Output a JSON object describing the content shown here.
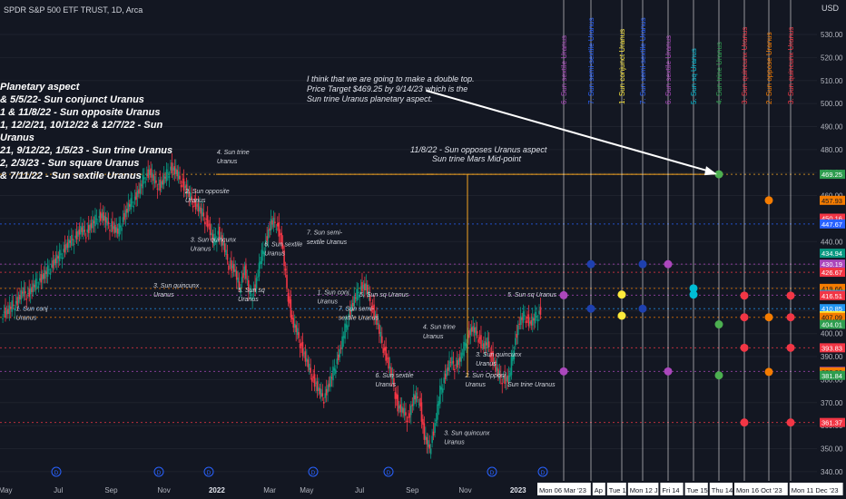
{
  "header": {
    "symbol": "SPDR S&P 500 ETF TRUST, 1D, Arca",
    "currency": "USD"
  },
  "chart_data": {
    "type": "candlestick",
    "ylim": [
      336,
      545
    ],
    "y_ticks": [
      340,
      350,
      360,
      370,
      380,
      390,
      400,
      410,
      420,
      430,
      440,
      450,
      460,
      470,
      480,
      490,
      500,
      510,
      520,
      530
    ],
    "x_ticks": [
      {
        "label": "May",
        "i": 0
      },
      {
        "label": "Jul",
        "i": 10
      },
      {
        "label": "Sep",
        "i": 20
      },
      {
        "label": "Nov",
        "i": 30
      },
      {
        "label": "2022",
        "i": 40
      },
      {
        "label": "Mar",
        "i": 50
      },
      {
        "label": "May",
        "i": 57
      },
      {
        "label": "Jul",
        "i": 67
      },
      {
        "label": "Sep",
        "i": 77
      },
      {
        "label": "Nov",
        "i": 87
      },
      {
        "label": "2023",
        "i": 97
      }
    ],
    "date_ticks": [
      "Mon 06 Mar '23",
      "Ap",
      "Tue 1",
      "Mon 12 J",
      "Fri 14",
      "Tue 15",
      "Thu 14",
      "Mon 16 Oct '23",
      "Mon 11 Dec '23"
    ],
    "weekly_closes": [
      409,
      412,
      414,
      418,
      417,
      420,
      423,
      425,
      428,
      431,
      434,
      437,
      440,
      442,
      445,
      444,
      447,
      450,
      451,
      448,
      446,
      444,
      450,
      455,
      458,
      462,
      468,
      470,
      466,
      464,
      468,
      472,
      470,
      466,
      462,
      458,
      455,
      452,
      448,
      440,
      444,
      438,
      430,
      428,
      420,
      428,
      416,
      420,
      432,
      440,
      448,
      448,
      440,
      420,
      405,
      400,
      392,
      386,
      380,
      375,
      372,
      378,
      385,
      392,
      402,
      410,
      416,
      420,
      420,
      412,
      405,
      396,
      388,
      380,
      368,
      366,
      363,
      372,
      372,
      355,
      350,
      360,
      375,
      382,
      388,
      386,
      390,
      398,
      402,
      400,
      394,
      396,
      388,
      382,
      380,
      380,
      395,
      405,
      408,
      404,
      407,
      410
    ],
    "price_labels": [
      {
        "value": 469.25,
        "text": "469.25",
        "color": "#2e9d4f"
      },
      {
        "value": 457.93,
        "text": "457.93",
        "color": "#f57c00"
      },
      {
        "value": 450.16,
        "text": "450.16",
        "color": "#f23645"
      },
      {
        "value": 447.67,
        "text": "447.67",
        "color": "#2962ff"
      },
      {
        "value": 434.94,
        "text": "434.94",
        "color": "#089981"
      },
      {
        "value": 430.19,
        "text": "430.19",
        "color": "#ab47bc"
      },
      {
        "value": 426.67,
        "text": "426.67",
        "color": "#f23645"
      },
      {
        "value": 419.66,
        "text": "419.66",
        "color": "#f57c00"
      },
      {
        "value": 416.97,
        "text": "416.97",
        "color": "#00bcd4"
      },
      {
        "value": 416.68,
        "text": "416.68",
        "color": "#ab47bc"
      },
      {
        "value": 416.51,
        "text": "416.51",
        "color": "#f23645"
      },
      {
        "value": 410.85,
        "text": "410.85",
        "color": "#2196f3"
      },
      {
        "value": 407.77,
        "text": "407.77",
        "color": "#ffeb3b"
      },
      {
        "value": 407.09,
        "text": "407.09",
        "color": "#f57c00"
      },
      {
        "value": 404.01,
        "text": "404.01",
        "color": "#2e9d4f"
      },
      {
        "value": 393.83,
        "text": "393.83",
        "color": "#f23645"
      },
      {
        "value": 383.59,
        "text": "383.59",
        "color": "#ab47bc"
      },
      {
        "value": 383.36,
        "text": "383.36",
        "color": "#f57c00"
      },
      {
        "value": 381.84,
        "text": "381.84",
        "color": "#2e9d4f"
      },
      {
        "value": 361.37,
        "text": "361.37",
        "color": "#f23645"
      }
    ],
    "horizontal_levels": [
      {
        "value": 469.25,
        "color": "#f5a623"
      },
      {
        "value": 447.67,
        "color": "#2962ff"
      },
      {
        "value": 430.19,
        "color": "#ab47bc"
      },
      {
        "value": 426.67,
        "color": "#f23645"
      },
      {
        "value": 419.66,
        "color": "#f57c00"
      },
      {
        "value": 416.68,
        "color": "#ab47bc"
      },
      {
        "value": 410.85,
        "color": "#2196f3"
      },
      {
        "value": 407.09,
        "color": "#f57c00"
      },
      {
        "value": 393.83,
        "color": "#f23645"
      },
      {
        "value": 383.59,
        "color": "#ab47bc"
      },
      {
        "value": 361.37,
        "color": "#f23645"
      }
    ],
    "future_aspects": [
      {
        "label": "6. Sun sextile Uranus",
        "color": "#ab47bc",
        "points": [
          {
            "value": 416.68,
            "color": "#ab47bc"
          },
          {
            "value": 383.59,
            "color": "#ab47bc"
          }
        ]
      },
      {
        "label": "7. Sun semi-sextile Uranus",
        "color": "#2962ff",
        "points": [
          {
            "value": 430.19,
            "color": "#1e40af"
          },
          {
            "value": 410.85,
            "color": "#1e40af"
          }
        ]
      },
      {
        "label": "1. Sun conjunct Uranus",
        "color": "#ffeb3b",
        "points": [
          {
            "value": 416.97,
            "color": "#ffeb3b"
          },
          {
            "value": 407.77,
            "color": "#ffeb3b"
          }
        ]
      },
      {
        "label": "7. Sun semi-sextile Uranus",
        "color": "#2962ff",
        "points": [
          {
            "value": 430.19,
            "color": "#1e40af"
          },
          {
            "value": 410.85,
            "color": "#1e40af"
          }
        ]
      },
      {
        "label": "6. Sun sextile Uranus",
        "color": "#ab47bc",
        "points": [
          {
            "value": 430.19,
            "color": "#ab47bc"
          },
          {
            "value": 383.59,
            "color": "#ab47bc"
          }
        ]
      },
      {
        "label": "5. Sun sq Uranus",
        "color": "#00bcd4",
        "points": [
          {
            "value": 419.66,
            "color": "#00bcd4"
          },
          {
            "value": 416.97,
            "color": "#00bcd4"
          }
        ]
      },
      {
        "label": "4. Sun trine Uranus",
        "color": "#2e9d4f",
        "points": [
          {
            "value": 469.25,
            "color": "#4caf50"
          },
          {
            "value": 404.01,
            "color": "#4caf50"
          },
          {
            "value": 381.84,
            "color": "#4caf50"
          }
        ]
      },
      {
        "label": "3. Sun quincunx Uranus",
        "color": "#f23645",
        "points": [
          {
            "value": 416.51,
            "color": "#f23645"
          },
          {
            "value": 407.09,
            "color": "#f23645"
          },
          {
            "value": 393.83,
            "color": "#f23645"
          },
          {
            "value": 361.37,
            "color": "#f23645"
          }
        ]
      },
      {
        "label": "2. Sun oppose Uranus",
        "color": "#f57c00",
        "points": [
          {
            "value": 457.93,
            "color": "#f57c00"
          },
          {
            "value": 407.09,
            "color": "#f57c00"
          },
          {
            "value": 383.36,
            "color": "#f57c00"
          }
        ]
      },
      {
        "label": "3. Sun quincunx Uranus",
        "color": "#f23645",
        "points": [
          {
            "value": 416.51,
            "color": "#f23645"
          },
          {
            "value": 407.09,
            "color": "#f23645"
          },
          {
            "value": 393.83,
            "color": "#f23645"
          },
          {
            "value": 361.37,
            "color": "#f23645"
          }
        ]
      }
    ],
    "legend_lines": [
      "Planetary aspect",
      "& 5/5/22- Sun conjunct Uranus",
      "1 & 11/8/22 - Sun opposite Uranus",
      "1, 12/2/21, 10/12/22 & 12/7/22 - Sun",
      "Uranus",
      "21, 9/12/22, 1/5/23 - Sun trine Uranus",
      "2, 2/3/23 - Sun square Uranus",
      "& 7/11/22 - Sun sextile Uranus"
    ],
    "target_note": [
      "I think that we are going to make a double top.",
      "Price Target $469.25 by 9/14/23 which is the",
      "Sun trine Uranus planetary  aspect."
    ],
    "opposition_note": [
      "11/8/22 - Sun opposes Uranus aspect",
      "Sun trine Mars Mid-point"
    ],
    "aspect_labels": [
      {
        "text": "4. Sun trine",
        "i": 40,
        "value": 478
      },
      {
        "text": "Uranus",
        "i": 40,
        "value": 474
      },
      {
        "text": "2. Sun opposite",
        "i": 34,
        "value": 461
      },
      {
        "text": "Uranus",
        "i": 34,
        "value": 457
      },
      {
        "text": "3. Sun quincunx",
        "i": 35,
        "value": 440
      },
      {
        "text": "Uranus",
        "i": 35,
        "value": 436
      },
      {
        "text": "6. Sun sextile",
        "i": 49,
        "value": 438
      },
      {
        "text": "Uranus",
        "i": 49,
        "value": 434
      },
      {
        "text": "7. Sun semi-",
        "i": 57,
        "value": 443
      },
      {
        "text": "sextile Uranus",
        "i": 57,
        "value": 439
      },
      {
        "text": "3. Sun quincunx",
        "i": 28,
        "value": 420
      },
      {
        "text": "Uranus",
        "i": 28,
        "value": 416
      },
      {
        "text": "5. Sun sq",
        "i": 44,
        "value": 418
      },
      {
        "text": "Uranus",
        "i": 44,
        "value": 414
      },
      {
        "text": "1. Sun conj.",
        "i": 59,
        "value": 417
      },
      {
        "text": "Uranus",
        "i": 59,
        "value": 413
      },
      {
        "text": "5. Sun sq Uranus",
        "i": 67,
        "value": 416
      },
      {
        "text": "7. Sun semi-",
        "i": 63,
        "value": 410
      },
      {
        "text": "sextile Uranus",
        "i": 63,
        "value": 406
      },
      {
        "text": "1. Sun conj",
        "i": 2,
        "value": 410
      },
      {
        "text": "Uranus",
        "i": 2,
        "value": 406
      },
      {
        "text": "4. Sun trine",
        "i": 79,
        "value": 402
      },
      {
        "text": "Uranus",
        "i": 79,
        "value": 398
      },
      {
        "text": "3. Sun quincunx",
        "i": 89,
        "value": 390
      },
      {
        "text": "Uranus",
        "i": 89,
        "value": 386
      },
      {
        "text": "2. Sun Opposi",
        "i": 87,
        "value": 381
      },
      {
        "text": "Uranus",
        "i": 87,
        "value": 377
      },
      {
        "text": "6. Sun sextile",
        "i": 70,
        "value": 381
      },
      {
        "text": "Uranus",
        "i": 70,
        "value": 377
      },
      {
        "text": "Sun trine Uranus",
        "i": 95,
        "value": 377
      },
      {
        "text": "5. Sun sq Uranus",
        "i": 95,
        "value": 416
      },
      {
        "text": "3. Sun quincunx",
        "i": 83,
        "value": 356
      },
      {
        "text": "Uranus",
        "i": 83,
        "value": 352
      }
    ],
    "event_markers": [
      "D",
      "D",
      "D",
      "D",
      "D",
      "D",
      "D",
      "D",
      "D"
    ]
  }
}
